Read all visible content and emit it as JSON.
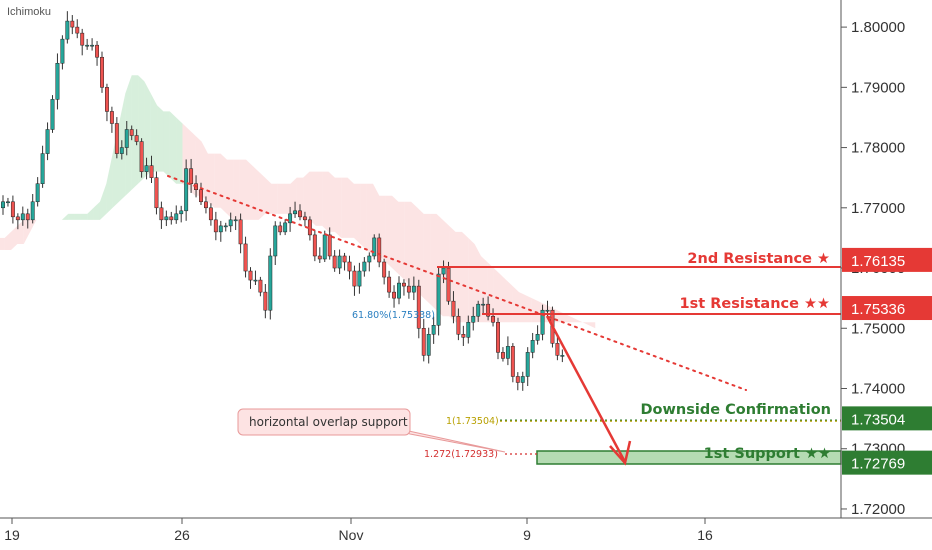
{
  "indicator": "Ichimoku",
  "colors": {
    "bull": "#26a69a",
    "bear": "#ef5350",
    "resistance": "#e53935",
    "support": "#2e7d32",
    "fib_1": "#b8a000",
    "fib_1272": "#d32f2f",
    "retrace": "#2a7fc0",
    "cloud_green": "#7cc98a",
    "cloud_red": "#f6b3b3"
  },
  "annotations": {
    "second_resistance": "2nd Resistance ★",
    "first_resistance": "1st Resistance ★★",
    "downside_confirmation": "Downside Confirmation",
    "first_support": "1st Support ★★",
    "callout": "horizontal overlap support",
    "fib_1": "1(1.73504)",
    "fib_1272": "1.272(1.72933)",
    "fib_618": "61.80%(1.75338)"
  },
  "chart_data": {
    "type": "candlestick",
    "x_ticks": [
      "19",
      "26",
      "Nov",
      "9",
      "16"
    ],
    "y_ticks": [
      "1.72000",
      "1.73000",
      "1.74000",
      "1.75000",
      "1.76000",
      "1.77000",
      "1.78000",
      "1.79000",
      "1.80000"
    ],
    "ylim": [
      1.7185,
      1.8045
    ],
    "levels": [
      {
        "name": "2nd Resistance",
        "value": 1.76135,
        "label": "1.76135"
      },
      {
        "name": "1st Resistance",
        "value": 1.75336,
        "label": "1.75336"
      },
      {
        "name": "Downside Confirmation",
        "value": 1.73504,
        "label": "1.73504"
      },
      {
        "name": "1st Support",
        "value": 1.72769,
        "label": "1.72769"
      }
    ],
    "fibonacci": [
      {
        "level": "1",
        "value": 1.73504
      },
      {
        "level": "1.272",
        "value": 1.72933
      },
      {
        "level": "61.80%",
        "value": 1.75338
      }
    ],
    "series": {
      "close": [
        1.771,
        1.771,
        1.7685,
        1.768,
        1.769,
        1.768,
        1.771,
        1.774,
        1.779,
        1.783,
        1.788,
        1.794,
        1.798,
        1.801,
        1.8,
        1.799,
        1.797,
        1.797,
        1.797,
        1.795,
        1.79,
        1.786,
        1.784,
        1.779,
        1.78,
        1.783,
        1.782,
        1.781,
        1.776,
        1.777,
        1.775,
        1.77,
        1.768,
        1.7685,
        1.768,
        1.769,
        1.7695,
        1.7765,
        1.774,
        1.773,
        1.771,
        1.77,
        1.768,
        1.766,
        1.767,
        1.767,
        1.768,
        1.768,
        1.764,
        1.7595,
        1.758,
        1.758,
        1.756,
        1.753,
        1.762,
        1.767,
        1.766,
        1.7675,
        1.769,
        1.7695,
        1.7685,
        1.768,
        1.7655,
        1.762,
        1.7615,
        1.7655,
        1.762,
        1.76,
        1.762,
        1.761,
        1.7595,
        1.757,
        1.7595,
        1.761,
        1.762,
        1.765,
        1.761,
        1.7585,
        1.756,
        1.755,
        1.7575,
        1.757,
        1.756,
        1.757,
        1.75,
        1.7455,
        1.749,
        1.7505,
        1.759,
        1.76,
        1.7545,
        1.752,
        1.749,
        1.7485,
        1.751,
        1.752,
        1.754,
        1.754,
        1.752,
        1.751,
        1.746,
        1.745,
        1.747,
        1.742,
        1.741,
        1.742,
        1.746,
        1.748,
        1.749,
        1.753,
        1.753,
        1.7475,
        1.7455,
        1.7455
      ],
      "cloud_top": [
        1.765,
        1.765,
        1.765,
        1.766,
        1.767,
        1.768,
        1.768,
        1.768,
        1.768,
        1.768,
        1.768,
        1.768,
        1.769,
        1.769,
        1.769,
        1.769,
        1.77,
        1.771,
        1.774,
        1.779,
        1.784,
        1.789,
        1.792,
        1.792,
        1.791,
        1.789,
        1.787,
        1.786,
        1.786,
        1.785,
        1.784,
        1.783,
        1.782,
        1.781,
        1.779,
        1.779,
        1.779,
        1.778,
        1.778,
        1.778,
        1.778,
        1.777,
        1.776,
        1.775,
        1.774,
        1.774,
        1.774,
        1.774,
        1.775,
        1.775,
        1.776,
        1.776,
        1.776,
        1.776,
        1.775,
        1.775,
        1.775,
        1.774,
        1.774,
        1.774,
        1.774,
        1.772,
        1.772,
        1.772,
        1.771,
        1.771,
        1.771,
        1.77,
        1.769,
        1.769,
        1.769,
        1.768,
        1.767,
        1.766,
        1.766,
        1.765,
        1.764,
        1.762,
        1.761,
        1.76,
        1.759,
        1.758,
        1.757,
        1.756,
        1.7555,
        1.755,
        1.7545,
        1.754,
        1.7535,
        1.753,
        1.7525,
        1.752,
        1.7515,
        1.751,
        1.7505,
        1.75
      ],
      "cloud_bottom": [
        1.763,
        1.763,
        1.763,
        1.763,
        1.764,
        1.764,
        1.766,
        1.768,
        1.768,
        1.768,
        1.768,
        1.768,
        1.768,
        1.768,
        1.768,
        1.768,
        1.768,
        1.768,
        1.769,
        1.77,
        1.771,
        1.772,
        1.773,
        1.774,
        1.775,
        1.776,
        1.776,
        1.776,
        1.775,
        1.774,
        1.774,
        1.773,
        1.772,
        1.772,
        1.771,
        1.77,
        1.77,
        1.769,
        1.768,
        1.768,
        1.768,
        1.768,
        1.768,
        1.769,
        1.769,
        1.769,
        1.769,
        1.769,
        1.769,
        1.768,
        1.768,
        1.767,
        1.767,
        1.766,
        1.766,
        1.765,
        1.765,
        1.765,
        1.764,
        1.763,
        1.762,
        1.762,
        1.761,
        1.76,
        1.759,
        1.758,
        1.757,
        1.756,
        1.755,
        1.754,
        1.753,
        1.752,
        1.752,
        1.751,
        1.751,
        1.751,
        1.751,
        1.751,
        1.751,
        1.751,
        1.751,
        1.751,
        1.751,
        1.751,
        1.751,
        1.751,
        1.751,
        1.751,
        1.751,
        1.751,
        1.751,
        1.751,
        1.751,
        1.751,
        1.751,
        1.751
      ]
    }
  }
}
